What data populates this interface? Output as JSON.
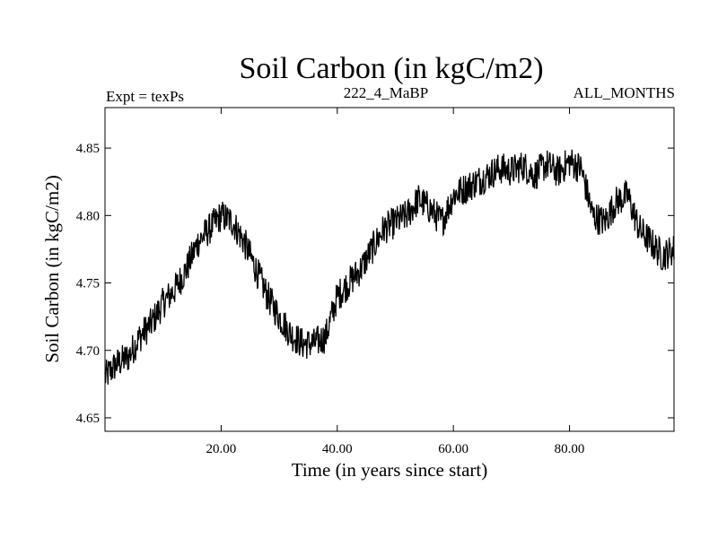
{
  "chart_data": {
    "type": "line",
    "title": "Soil Carbon (in kgC/m2)",
    "subtitle_left": "Expt = texPs",
    "subtitle_center": "222_4_MaBP",
    "subtitle_right": "ALL_MONTHS",
    "xlabel": "Time (in years since start)",
    "ylabel": "Soil Carbon (in kgC/m2)",
    "xlim": [
      0,
      98
    ],
    "ylim": [
      4.64,
      4.88
    ],
    "xticks": [
      20,
      40,
      60,
      80
    ],
    "xtick_labels": [
      "20.00",
      "40.00",
      "60.00",
      "80.00"
    ],
    "yticks": [
      4.65,
      4.7,
      4.75,
      4.8,
      4.85
    ],
    "ytick_labels": [
      "4.65",
      "4.70",
      "4.75",
      "4.80",
      "4.85"
    ],
    "series": [
      {
        "name": "Soil Carbon",
        "color": "#000000",
        "noise_amplitude": 0.012,
        "samples_per_year": 12,
        "x": [
          0,
          2,
          4,
          6,
          8,
          10,
          12,
          14,
          16,
          18,
          20,
          22,
          24,
          26,
          28,
          30,
          32,
          34,
          36,
          38,
          40,
          42,
          44,
          46,
          48,
          50,
          52,
          54,
          56,
          58,
          60,
          62,
          64,
          66,
          68,
          70,
          72,
          74,
          76,
          78,
          80,
          82,
          84,
          86,
          88,
          90,
          92,
          94,
          96,
          98
        ],
        "values": [
          4.68,
          4.69,
          4.695,
          4.71,
          4.72,
          4.735,
          4.745,
          4.76,
          4.78,
          4.79,
          4.8,
          4.795,
          4.78,
          4.76,
          4.74,
          4.725,
          4.712,
          4.705,
          4.705,
          4.71,
          4.74,
          4.75,
          4.76,
          4.775,
          4.79,
          4.795,
          4.8,
          4.812,
          4.805,
          4.795,
          4.815,
          4.82,
          4.825,
          4.83,
          4.835,
          4.833,
          4.837,
          4.83,
          4.838,
          4.832,
          4.84,
          4.835,
          4.8,
          4.795,
          4.81,
          4.815,
          4.79,
          4.78,
          4.77,
          4.775
        ]
      }
    ]
  }
}
